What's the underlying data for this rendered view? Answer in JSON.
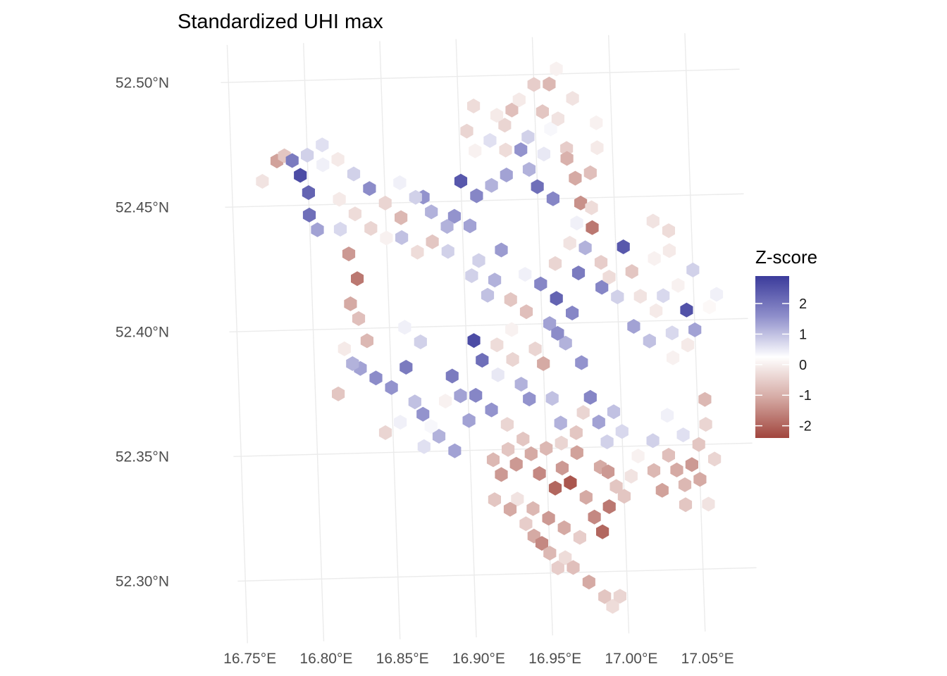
{
  "chart_data": {
    "type": "heatmap",
    "subtype": "hexbin-map",
    "title": "Standardized UHI max",
    "xlabel": "",
    "ylabel": "",
    "x_ticks": [
      "16.75°E",
      "16.80°E",
      "16.85°E",
      "16.90°E",
      "16.95°E",
      "17.00°E",
      "17.05°E"
    ],
    "y_ticks": [
      "52.30°N",
      "52.35°N",
      "52.40°N",
      "52.45°N",
      "52.50°N"
    ],
    "x_tick_values": [
      16.75,
      16.8,
      16.85,
      16.9,
      16.95,
      17.0,
      17.05
    ],
    "y_tick_values": [
      52.3,
      52.35,
      52.4,
      52.45,
      52.5
    ],
    "xlim": [
      16.74,
      17.09
    ],
    "ylim": [
      52.28,
      52.515
    ],
    "grid": true,
    "legend": {
      "title": "Z-score",
      "position": "right",
      "ticks": [
        "2",
        "1",
        "0",
        "-1",
        "-2"
      ],
      "tick_values": [
        2,
        1,
        0,
        -1,
        -2
      ],
      "range": [
        -2.4,
        2.9
      ]
    },
    "colors": {
      "low": "#a1453d",
      "mid": "#ffffff",
      "high": "#3b3b9b"
    },
    "note_on_values": "hex cells listed as [longitude, latitude, z-score]; values estimated from colour",
    "cells": [
      [
        16.77,
        52.46,
        -0.4
      ],
      [
        16.78,
        52.468,
        -1.3
      ],
      [
        16.785,
        52.47,
        -0.8
      ],
      [
        16.79,
        52.468,
        1.8
      ],
      [
        16.795,
        52.462,
        2.6
      ],
      [
        16.8,
        52.455,
        2.2
      ],
      [
        16.8,
        52.446,
        2.0
      ],
      [
        16.805,
        52.44,
        1.2
      ],
      [
        16.81,
        52.474,
        0.4
      ],
      [
        16.82,
        52.468,
        -0.3
      ],
      [
        16.83,
        52.462,
        0.6
      ],
      [
        16.84,
        52.456,
        1.5
      ],
      [
        16.85,
        52.45,
        -0.6
      ],
      [
        16.86,
        52.444,
        -1.0
      ],
      [
        16.86,
        52.436,
        0.8
      ],
      [
        16.87,
        52.43,
        -0.5
      ],
      [
        16.88,
        52.434,
        -0.8
      ],
      [
        16.89,
        52.43,
        0.6
      ],
      [
        16.895,
        52.444,
        1.4
      ],
      [
        16.9,
        52.458,
        2.4
      ],
      [
        16.91,
        52.452,
        1.6
      ],
      [
        16.92,
        52.456,
        1.0
      ],
      [
        16.93,
        52.46,
        1.2
      ],
      [
        16.905,
        52.44,
        1.2
      ],
      [
        16.91,
        52.426,
        0.6
      ],
      [
        16.92,
        52.418,
        1.0
      ],
      [
        16.925,
        52.43,
        1.3
      ],
      [
        16.94,
        52.42,
        0.2
      ],
      [
        16.95,
        52.416,
        1.6
      ],
      [
        16.96,
        52.41,
        2.2
      ],
      [
        16.97,
        52.404,
        1.6
      ],
      [
        16.975,
        52.42,
        1.8
      ],
      [
        16.98,
        52.43,
        1.0
      ],
      [
        16.99,
        52.414,
        1.6
      ],
      [
        17.0,
        52.41,
        0.6
      ],
      [
        17.005,
        52.43,
        2.4
      ],
      [
        17.01,
        52.398,
        1.2
      ],
      [
        17.02,
        52.392,
        0.8
      ],
      [
        17.035,
        52.395,
        0.5
      ],
      [
        17.045,
        52.404,
        2.5
      ],
      [
        17.05,
        52.396,
        1.2
      ],
      [
        17.065,
        52.41,
        0.2
      ],
      [
        17.06,
        52.405,
        -0.1
      ],
      [
        16.93,
        52.48,
        -0.6
      ],
      [
        16.935,
        52.486,
        -0.9
      ],
      [
        16.94,
        52.49,
        -0.3
      ],
      [
        16.945,
        52.475,
        0.6
      ],
      [
        16.955,
        52.485,
        -0.8
      ],
      [
        16.96,
        52.496,
        -1.0
      ],
      [
        16.965,
        52.502,
        -0.2
      ],
      [
        16.975,
        52.49,
        -0.4
      ],
      [
        16.97,
        52.47,
        -0.7
      ],
      [
        16.975,
        52.458,
        -1.2
      ],
      [
        16.978,
        52.448,
        -1.5
      ],
      [
        16.985,
        52.438,
        -1.8
      ],
      [
        16.97,
        52.466,
        -1.1
      ],
      [
        16.96,
        52.45,
        1.6
      ],
      [
        16.95,
        52.455,
        2.0
      ],
      [
        16.945,
        52.462,
        1.0
      ],
      [
        16.94,
        52.47,
        1.4
      ],
      [
        16.93,
        52.47,
        -0.5
      ],
      [
        16.82,
        52.44,
        0.5
      ],
      [
        16.825,
        52.43,
        -1.4
      ],
      [
        16.83,
        52.42,
        -1.8
      ],
      [
        16.825,
        52.41,
        -1.2
      ],
      [
        16.83,
        52.404,
        -0.9
      ],
      [
        16.835,
        52.395,
        -1.0
      ],
      [
        16.83,
        52.384,
        1.2
      ],
      [
        16.84,
        52.38,
        1.5
      ],
      [
        16.85,
        52.376,
        1.4
      ],
      [
        16.86,
        52.384,
        1.8
      ],
      [
        16.865,
        52.37,
        0.8
      ],
      [
        16.87,
        52.365,
        1.4
      ],
      [
        16.855,
        52.362,
        0.2
      ],
      [
        16.845,
        52.358,
        -0.6
      ],
      [
        16.815,
        52.374,
        -0.8
      ],
      [
        16.89,
        52.38,
        1.8
      ],
      [
        16.895,
        52.372,
        1.2
      ],
      [
        16.9,
        52.362,
        1.2
      ],
      [
        16.905,
        52.394,
        2.6
      ],
      [
        16.91,
        52.386,
        2.0
      ],
      [
        16.905,
        52.372,
        1.6
      ],
      [
        16.915,
        52.366,
        1.4
      ],
      [
        16.88,
        52.356,
        1.0
      ],
      [
        16.89,
        52.35,
        1.2
      ],
      [
        16.87,
        52.352,
        0.4
      ],
      [
        16.925,
        52.36,
        -0.6
      ],
      [
        16.935,
        52.354,
        -0.8
      ],
      [
        16.94,
        52.348,
        -1.2
      ],
      [
        16.945,
        52.34,
        -1.6
      ],
      [
        16.955,
        52.334,
        -2.0
      ],
      [
        16.96,
        52.342,
        -1.4
      ],
      [
        16.965,
        52.336,
        -2.2
      ],
      [
        16.97,
        52.348,
        -1.3
      ],
      [
        16.975,
        52.33,
        -1.2
      ],
      [
        16.98,
        52.322,
        -1.6
      ],
      [
        16.985,
        52.316,
        -2.0
      ],
      [
        16.99,
        52.326,
        -1.8
      ],
      [
        16.995,
        52.334,
        -0.8
      ],
      [
        17.005,
        52.338,
        -0.4
      ],
      [
        17.01,
        52.346,
        -0.2
      ],
      [
        17.02,
        52.352,
        0.6
      ],
      [
        17.03,
        52.346,
        -0.9
      ],
      [
        17.035,
        52.34,
        -1.2
      ],
      [
        17.04,
        52.334,
        -1.0
      ],
      [
        17.045,
        52.342,
        -1.4
      ],
      [
        17.05,
        52.35,
        -0.8
      ],
      [
        17.055,
        52.358,
        -0.6
      ],
      [
        17.055,
        52.368,
        -1.0
      ],
      [
        17.04,
        52.354,
        0.4
      ],
      [
        17.03,
        52.362,
        0.2
      ],
      [
        17.04,
        52.326,
        -0.8
      ],
      [
        16.93,
        52.33,
        -0.4
      ],
      [
        16.935,
        52.32,
        -0.7
      ],
      [
        16.94,
        52.315,
        -1.2
      ],
      [
        16.945,
        52.312,
        -1.6
      ],
      [
        16.95,
        52.308,
        -1.0
      ],
      [
        16.955,
        52.302,
        -0.7
      ],
      [
        16.96,
        52.306,
        -0.5
      ],
      [
        16.965,
        52.302,
        -0.9
      ],
      [
        16.975,
        52.296,
        -1.2
      ],
      [
        16.985,
        52.29,
        -0.8
      ],
      [
        16.99,
        52.286,
        -0.5
      ],
      [
        16.995,
        52.29,
        -0.6
      ],
      [
        16.92,
        52.34,
        -1.4
      ],
      [
        16.915,
        52.346,
        -1.0
      ],
      [
        16.935,
        52.376,
        1.0
      ],
      [
        16.94,
        52.37,
        1.4
      ],
      [
        16.945,
        52.39,
        -0.6
      ],
      [
        16.95,
        52.384,
        -1.2
      ],
      [
        16.955,
        52.37,
        0.8
      ],
      [
        16.96,
        52.36,
        1.0
      ],
      [
        16.965,
        52.392,
        1.0
      ],
      [
        16.975,
        52.384,
        1.4
      ],
      [
        16.98,
        52.37,
        1.6
      ],
      [
        16.985,
        52.36,
        1.2
      ],
      [
        16.99,
        52.352,
        0.6
      ],
      [
        16.995,
        52.364,
        0.8
      ],
      [
        17.0,
        52.356,
        0.5
      ],
      [
        16.89,
        52.44,
        1.0
      ],
      [
        16.88,
        52.446,
        1.0
      ],
      [
        16.875,
        52.452,
        1.4
      ],
      [
        16.905,
        52.42,
        0.6
      ],
      [
        16.915,
        52.412,
        0.8
      ],
      [
        16.93,
        52.41,
        -0.8
      ],
      [
        16.94,
        52.405,
        -0.9
      ],
      [
        16.955,
        52.4,
        1.2
      ],
      [
        16.96,
        52.396,
        1.5
      ],
      [
        16.96,
        52.424,
        -0.6
      ],
      [
        16.97,
        52.432,
        -0.4
      ],
      [
        16.975,
        52.44,
        0.2
      ],
      [
        16.985,
        52.446,
        -0.5
      ],
      [
        16.99,
        52.424,
        -0.7
      ],
      [
        16.995,
        52.418,
        -0.5
      ],
      [
        17.01,
        52.42,
        -0.8
      ],
      [
        17.015,
        52.41,
        -0.4
      ],
      [
        17.025,
        52.404,
        -0.3
      ],
      [
        17.03,
        52.41,
        0.5
      ],
      [
        17.04,
        52.414,
        -0.2
      ],
      [
        17.05,
        52.42,
        0.6
      ],
      [
        17.045,
        52.39,
        -0.3
      ],
      [
        17.035,
        52.385,
        -0.2
      ],
      [
        16.8,
        52.47,
        0.6
      ],
      [
        16.81,
        52.466,
        0.2
      ],
      [
        16.82,
        52.452,
        -0.3
      ],
      [
        16.83,
        52.446,
        -0.5
      ],
      [
        16.84,
        52.44,
        -0.6
      ],
      [
        16.85,
        52.436,
        -0.2
      ],
      [
        16.86,
        52.458,
        0.2
      ],
      [
        16.87,
        52.452,
        0.6
      ],
      [
        16.82,
        52.392,
        -0.3
      ],
      [
        16.825,
        52.386,
        1.0
      ],
      [
        16.86,
        52.4,
        0.2
      ],
      [
        16.87,
        52.394,
        0.6
      ],
      [
        16.875,
        52.36,
        0.1
      ],
      [
        16.885,
        52.37,
        -0.2
      ],
      [
        16.92,
        52.392,
        -0.5
      ],
      [
        16.93,
        52.398,
        -0.2
      ],
      [
        16.92,
        52.38,
        0.3
      ],
      [
        16.93,
        52.386,
        -0.6
      ],
      [
        16.92,
        52.474,
        0.4
      ],
      [
        16.925,
        52.484,
        -0.3
      ],
      [
        16.91,
        52.47,
        -0.2
      ],
      [
        16.905,
        52.478,
        -0.6
      ],
      [
        16.91,
        52.488,
        -0.5
      ],
      [
        16.95,
        52.496,
        -0.7
      ],
      [
        16.96,
        52.478,
        0.1
      ],
      [
        16.955,
        52.468,
        0.3
      ],
      [
        16.965,
        52.482,
        -0.4
      ],
      [
        16.985,
        52.46,
        -0.9
      ],
      [
        16.99,
        52.47,
        -0.3
      ],
      [
        16.99,
        52.48,
        -0.2
      ],
      [
        17.025,
        52.44,
        -0.4
      ],
      [
        17.035,
        52.436,
        -0.5
      ],
      [
        17.035,
        52.428,
        -0.3
      ],
      [
        17.025,
        52.425,
        -0.2
      ],
      [
        16.95,
        52.35,
        -1.0
      ],
      [
        16.96,
        52.352,
        -0.6
      ],
      [
        16.97,
        52.356,
        -0.8
      ],
      [
        16.975,
        52.364,
        -0.6
      ],
      [
        16.985,
        52.342,
        -1.2
      ],
      [
        16.99,
        52.34,
        -1.4
      ],
      [
        17.0,
        52.33,
        -0.8
      ],
      [
        17.02,
        52.34,
        -1.0
      ],
      [
        17.025,
        52.332,
        -1.3
      ],
      [
        17.05,
        52.336,
        -1.2
      ],
      [
        17.06,
        52.344,
        -0.6
      ],
      [
        17.055,
        52.326,
        -0.4
      ],
      [
        16.925,
        52.326,
        -1.2
      ],
      [
        16.915,
        52.33,
        -0.8
      ],
      [
        16.94,
        52.326,
        -1.0
      ],
      [
        16.95,
        52.322,
        -1.4
      ],
      [
        16.96,
        52.318,
        -1.2
      ],
      [
        16.97,
        52.314,
        -0.7
      ],
      [
        16.925,
        52.35,
        -0.8
      ],
      [
        16.93,
        52.344,
        -1.4
      ]
    ]
  }
}
